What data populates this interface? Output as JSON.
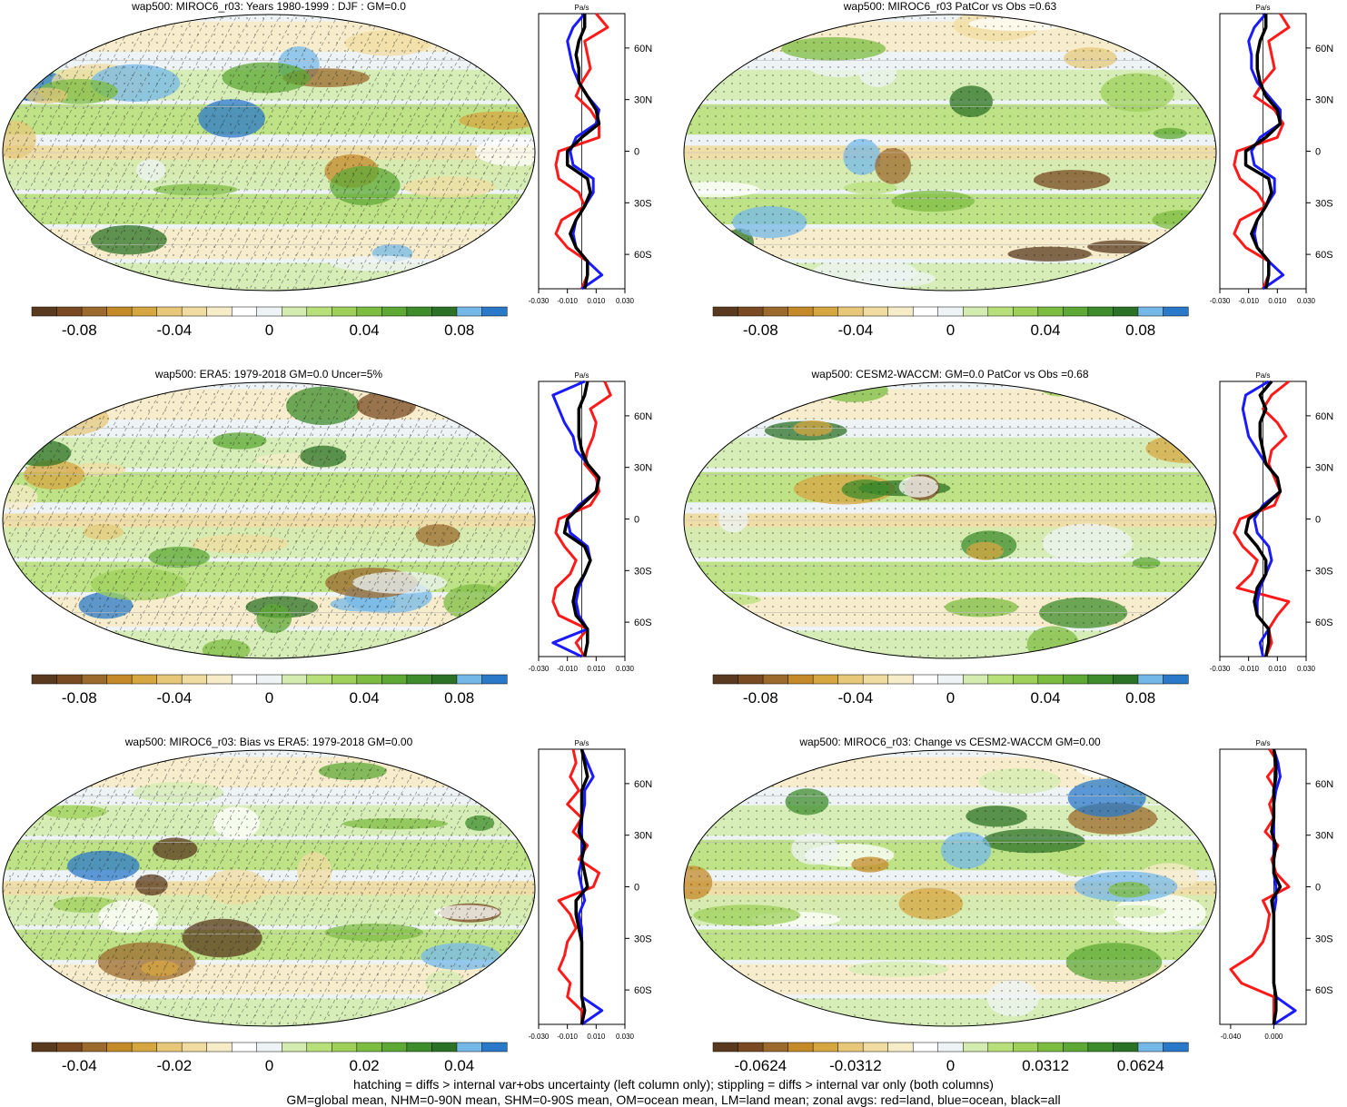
{
  "figure": {
    "footnote_line1": "hatching = diffs > internal var+obs uncertainty (left column only); stippling = diffs > internal var only (both columns)",
    "footnote_line2": "GM=global mean, NHM=0-90N mean, SHM=0-90S mean, OM=ocean mean, LM=land mean; zonal avgs: red=land, blue=ocean, black=all"
  },
  "colors": {
    "land": "#ff1a1a",
    "ocean": "#1a1aff",
    "all": "#000000",
    "palette": [
      "#5a3a1e",
      "#7a4a22",
      "#9c6a2c",
      "#c48a2a",
      "#d6a640",
      "#e6c878",
      "#f0dca0",
      "#f7ecc8",
      "#ffffff",
      "#eef4f6",
      "#d4ecb0",
      "#b8e07a",
      "#9ed05a",
      "#7cbc40",
      "#5ea836",
      "#3e8c2c",
      "#2c7226",
      "#74b8e8",
      "#2a78c8"
    ]
  },
  "chart_data": [
    {
      "type": "heatmap",
      "title": "wap500: MIROC6_r03: Years 1980-1999 : DJF : GM=0.0",
      "hatched": true,
      "colorbar": {
        "ticks": [
          "-0.08",
          "-0.04",
          "0",
          "0.04",
          "0.08"
        ],
        "range": [
          -0.1,
          0.1
        ]
      },
      "profile": {
        "unit": "Pa/s",
        "lat_ticks": [
          "60N",
          "30N",
          "0",
          "30S",
          "60S"
        ],
        "x_ticks": [
          "-0.030",
          "-0.010",
          "0.010",
          "0.030"
        ],
        "xlim": [
          -0.03,
          0.03
        ],
        "lat": [
          80,
          72,
          64,
          56,
          48,
          40,
          32,
          24,
          16,
          8,
          0,
          -8,
          -16,
          -24,
          -32,
          -40,
          -48,
          -56,
          -64,
          -72,
          -80
        ],
        "series": [
          {
            "name": "land",
            "values": [
              0.01,
              0.018,
              0.002,
              0.004,
              0.006,
              0.0,
              -0.004,
              0.006,
              0.012,
              0.012,
              -0.016,
              -0.018,
              -0.016,
              -0.002,
              0.002,
              -0.014,
              -0.018,
              -0.01,
              0.004,
              0.004,
              0.0
            ]
          },
          {
            "name": "ocean",
            "values": [
              0.002,
              -0.006,
              -0.01,
              -0.008,
              -0.006,
              -0.002,
              0.004,
              0.012,
              0.01,
              -0.004,
              -0.008,
              -0.006,
              0.008,
              0.008,
              0.002,
              -0.004,
              -0.006,
              -0.004,
              0.004,
              0.014,
              0.0
            ]
          },
          {
            "name": "all",
            "values": [
              0.002,
              0.002,
              -0.002,
              -0.004,
              -0.002,
              -0.002,
              0.004,
              0.01,
              0.012,
              0.0,
              -0.01,
              -0.01,
              0.004,
              0.006,
              0.002,
              -0.004,
              -0.008,
              -0.004,
              0.004,
              0.004,
              0.002
            ]
          }
        ]
      }
    },
    {
      "type": "heatmap",
      "title": "wap500: MIROC6_r03 PatCor vs Obs =0.63",
      "hatched": false,
      "colorbar": {
        "ticks": [
          "-0.08",
          "-0.04",
          "0",
          "0.04",
          "0.08"
        ],
        "range": [
          -0.1,
          0.1
        ]
      },
      "profile": {
        "unit": "Pa/s",
        "lat_ticks": [
          "60N",
          "30N",
          "0",
          "30S",
          "60S"
        ],
        "x_ticks": [
          "-0.030",
          "-0.010",
          "0.010",
          "0.030"
        ],
        "xlim": [
          -0.03,
          0.03
        ],
        "lat": [
          80,
          72,
          64,
          56,
          48,
          40,
          32,
          24,
          16,
          8,
          0,
          -8,
          -16,
          -24,
          -32,
          -40,
          -48,
          -56,
          -64,
          -72,
          -80
        ],
        "series": [
          {
            "name": "land",
            "values": [
              0.012,
              0.018,
              0.004,
              0.006,
              0.008,
              0.0,
              -0.006,
              0.008,
              0.014,
              0.01,
              -0.018,
              -0.02,
              -0.016,
              -0.004,
              0.002,
              -0.016,
              -0.02,
              -0.012,
              0.004,
              0.004,
              0.0
            ]
          },
          {
            "name": "ocean",
            "values": [
              0.002,
              -0.006,
              -0.01,
              -0.008,
              -0.008,
              -0.004,
              0.004,
              0.012,
              0.012,
              -0.002,
              -0.008,
              -0.006,
              0.008,
              0.008,
              0.002,
              -0.004,
              -0.006,
              -0.004,
              0.004,
              0.014,
              0.0
            ]
          },
          {
            "name": "all",
            "values": [
              0.002,
              0.002,
              -0.002,
              -0.004,
              -0.004,
              -0.002,
              0.002,
              0.01,
              0.012,
              0.002,
              -0.012,
              -0.012,
              0.004,
              0.006,
              0.002,
              -0.004,
              -0.008,
              -0.004,
              0.004,
              0.004,
              0.002
            ]
          }
        ]
      }
    },
    {
      "type": "heatmap",
      "title": "wap500: ERA5: 1979-2018 GM=0.0 Uncer=5%",
      "hatched": true,
      "colorbar": {
        "ticks": [
          "-0.08",
          "-0.04",
          "0",
          "0.04",
          "0.08"
        ],
        "range": [
          -0.1,
          0.1
        ]
      },
      "profile": {
        "unit": "Pa/s",
        "lat_ticks": [
          "60N",
          "30N",
          "0",
          "30S",
          "60S"
        ],
        "x_ticks": [
          "-0.030",
          "-0.010",
          "0.010",
          "0.030"
        ],
        "xlim": [
          -0.03,
          0.03
        ],
        "lat": [
          80,
          72,
          64,
          56,
          48,
          40,
          32,
          24,
          16,
          8,
          0,
          -8,
          -16,
          -24,
          -32,
          -40,
          -48,
          -56,
          -64,
          -72,
          -80
        ],
        "series": [
          {
            "name": "land",
            "values": [
              0.016,
              0.02,
              0.006,
              0.01,
              0.008,
              0.004,
              0.002,
              0.01,
              0.012,
              0.006,
              -0.016,
              -0.018,
              -0.012,
              -0.004,
              -0.008,
              -0.018,
              -0.02,
              -0.016,
              0.004,
              -0.004,
              0.002
            ]
          },
          {
            "name": "ocean",
            "values": [
              0.002,
              -0.02,
              -0.016,
              -0.012,
              -0.006,
              -0.004,
              0.004,
              0.012,
              0.01,
              -0.002,
              -0.01,
              -0.008,
              0.004,
              0.006,
              0.002,
              -0.002,
              -0.004,
              -0.002,
              0.004,
              -0.02,
              0.0
            ]
          },
          {
            "name": "all",
            "values": [
              0.004,
              0.002,
              -0.002,
              -0.002,
              -0.002,
              0.0,
              0.004,
              0.012,
              0.01,
              0.0,
              -0.01,
              -0.012,
              0.002,
              0.006,
              0.002,
              -0.004,
              -0.006,
              -0.004,
              0.004,
              0.004,
              0.002
            ]
          }
        ]
      }
    },
    {
      "type": "heatmap",
      "title": "wap500: CESM2-WACCM: GM=0.0 PatCor vs Obs =0.68",
      "hatched": false,
      "colorbar": {
        "ticks": [
          "-0.08",
          "-0.04",
          "0",
          "0.04",
          "0.08"
        ],
        "range": [
          -0.1,
          0.1
        ]
      },
      "profile": {
        "unit": "Pa/s",
        "lat_ticks": [
          "60N",
          "30N",
          "0",
          "30S",
          "60S"
        ],
        "x_ticks": [
          "-0.030",
          "-0.010",
          "0.010",
          "0.030"
        ],
        "xlim": [
          -0.03,
          0.03
        ],
        "lat": [
          80,
          72,
          64,
          56,
          48,
          40,
          32,
          24,
          16,
          8,
          0,
          -8,
          -16,
          -24,
          -32,
          -40,
          -48,
          -56,
          -64,
          -72,
          -80
        ],
        "series": [
          {
            "name": "land",
            "values": [
              0.018,
              0.006,
              0.0,
              0.01,
              0.016,
              0.006,
              0.004,
              0.008,
              0.012,
              0.008,
              -0.016,
              -0.02,
              -0.014,
              -0.004,
              -0.008,
              -0.018,
              0.018,
              0.01,
              0.004,
              0.006,
              0.002
            ]
          },
          {
            "name": "ocean",
            "values": [
              0.004,
              -0.012,
              -0.014,
              -0.012,
              -0.01,
              -0.004,
              0.002,
              0.01,
              0.012,
              0.0,
              -0.006,
              -0.004,
              0.004,
              0.006,
              0.002,
              -0.002,
              -0.004,
              -0.004,
              0.004,
              -0.002,
              0.0
            ]
          },
          {
            "name": "all",
            "values": [
              0.006,
              -0.002,
              0.002,
              -0.002,
              -0.002,
              0.0,
              0.002,
              0.01,
              0.012,
              0.002,
              -0.01,
              -0.012,
              -0.004,
              0.002,
              0.002,
              -0.004,
              -0.006,
              -0.004,
              0.004,
              0.004,
              0.002
            ]
          }
        ]
      }
    },
    {
      "type": "heatmap",
      "title": "wap500: MIROC6_r03: Bias vs ERA5: 1979-2018 GM=0.00",
      "hatched": true,
      "colorbar": {
        "ticks": [
          "-0.04",
          "-0.02",
          "0",
          "0.02",
          "0.04"
        ],
        "range": [
          -0.05,
          0.05
        ]
      },
      "profile": {
        "unit": "Pa/s",
        "lat_ticks": [
          "60N",
          "30N",
          "0",
          "30S",
          "60S"
        ],
        "x_ticks": [
          "-0.030",
          "-0.010",
          "0.010",
          "0.030"
        ],
        "xlim": [
          -0.03,
          0.03
        ],
        "lat": [
          80,
          72,
          64,
          56,
          48,
          40,
          32,
          24,
          16,
          8,
          0,
          -8,
          -16,
          -24,
          -32,
          -40,
          -48,
          -56,
          -64,
          -72,
          -80
        ],
        "series": [
          {
            "name": "land",
            "values": [
              -0.006,
              -0.004,
              -0.008,
              -0.002,
              -0.01,
              0.0,
              -0.006,
              0.004,
              -0.002,
              0.012,
              0.008,
              -0.016,
              -0.008,
              -0.004,
              -0.01,
              -0.012,
              -0.016,
              -0.008,
              -0.01,
              0.0,
              0.0
            ]
          },
          {
            "name": "ocean",
            "values": [
              0.0,
              0.004,
              0.008,
              0.002,
              0.002,
              0.0,
              0.0,
              0.0,
              0.0,
              -0.002,
              0.0,
              0.002,
              -0.002,
              0.0,
              0.0,
              0.0,
              0.0,
              0.0,
              0.0,
              0.014,
              0.0
            ]
          },
          {
            "name": "all",
            "values": [
              0.0,
              0.002,
              0.004,
              0.0,
              0.0,
              0.0,
              -0.002,
              0.002,
              0.0,
              0.002,
              0.004,
              -0.004,
              -0.004,
              -0.002,
              0.0,
              0.0,
              0.0,
              0.0,
              0.0,
              0.002,
              0.0
            ]
          }
        ]
      }
    },
    {
      "type": "heatmap",
      "title": "wap500: MIROC6_r03: Change vs CESM2-WACCM GM=0.00",
      "hatched": false,
      "colorbar": {
        "ticks": [
          "-0.0624",
          "-0.0312",
          "0",
          "0.0312",
          "0.0624"
        ],
        "range": [
          -0.078,
          0.078
        ]
      },
      "profile": {
        "unit": "Pa/s",
        "lat_ticks": [
          "60N",
          "30N",
          "0",
          "30S",
          "60S"
        ],
        "x_ticks": [
          "-0.040",
          "0.000"
        ],
        "xlim": [
          -0.05,
          0.03
        ],
        "lat": [
          80,
          72,
          64,
          56,
          48,
          40,
          32,
          24,
          16,
          8,
          0,
          -8,
          -16,
          -24,
          -32,
          -40,
          -48,
          -56,
          -64,
          -72,
          -80
        ],
        "series": [
          {
            "name": "land",
            "values": [
              -0.004,
              0.004,
              -0.006,
              0.002,
              -0.004,
              0.0,
              -0.008,
              0.004,
              -0.002,
              0.002,
              0.014,
              -0.01,
              -0.004,
              -0.006,
              -0.01,
              -0.02,
              -0.04,
              -0.03,
              0.0,
              0.0,
              0.0
            ]
          },
          {
            "name": "ocean",
            "values": [
              0.0,
              0.004,
              0.006,
              0.002,
              0.0,
              0.0,
              0.0,
              0.0,
              0.0,
              0.0,
              0.002,
              0.002,
              0.0,
              0.0,
              0.0,
              0.0,
              0.0,
              0.0,
              0.002,
              0.02,
              0.0
            ]
          },
          {
            "name": "all",
            "values": [
              0.0,
              0.002,
              0.002,
              0.0,
              0.0,
              0.0,
              -0.002,
              0.002,
              0.0,
              0.0,
              0.006,
              -0.002,
              0.0,
              0.0,
              0.0,
              0.0,
              0.0,
              0.0,
              0.002,
              0.002,
              0.0
            ]
          }
        ]
      }
    }
  ]
}
